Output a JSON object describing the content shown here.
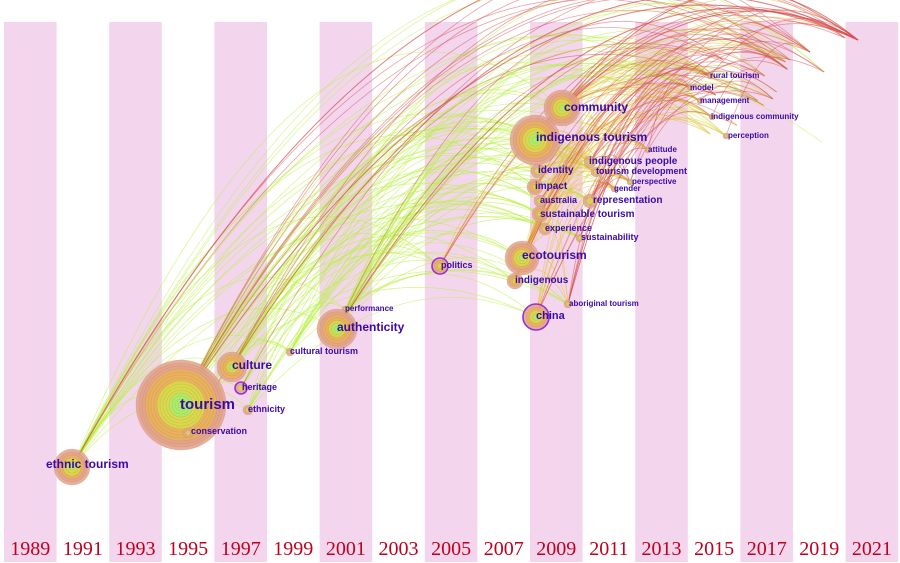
{
  "timeline": {
    "years": [
      "1989",
      "1991",
      "1993",
      "1995",
      "1997",
      "1999",
      "2001",
      "2003",
      "2005",
      "2007",
      "2009",
      "2011",
      "2013",
      "2015",
      "2017",
      "2019",
      "2021"
    ],
    "band_color": "#f3d6ee",
    "year_color": "#c0001e"
  },
  "keyword_colors": {
    "label": "#3a0aa8",
    "early_links": "#b8f040",
    "mid_links": "#e6c23c",
    "late_links": "#d64a4a"
  },
  "keywords": [
    {
      "id": "ethnic_tourism",
      "label": "ethnic tourism",
      "year": 1991,
      "weight": 5,
      "size": "xl"
    },
    {
      "id": "tourism",
      "label": "tourism",
      "year": 1995,
      "weight": 10,
      "size": "xxl"
    },
    {
      "id": "conservation",
      "label": "conservation",
      "year": 1995,
      "weight": 1,
      "size": "s"
    },
    {
      "id": "culture",
      "label": "culture",
      "year": 1997,
      "weight": 4,
      "size": "l"
    },
    {
      "id": "heritage",
      "label": "heritage",
      "year": 1997,
      "weight": 2,
      "size": "s"
    },
    {
      "id": "ethnicity",
      "label": "ethnicity",
      "year": 1997,
      "weight": 1,
      "size": "s"
    },
    {
      "id": "cultural_tourism",
      "label": "cultural tourism",
      "year": 1998,
      "weight": 1,
      "size": "s"
    },
    {
      "id": "performance",
      "label": "performance",
      "year": 2001,
      "weight": 1,
      "size": "s"
    },
    {
      "id": "authenticity",
      "label": "authenticity",
      "year": 2001,
      "weight": 5,
      "size": "l"
    },
    {
      "id": "politics",
      "label": "politics",
      "year": 2005,
      "weight": 2,
      "size": "s"
    },
    {
      "id": "community",
      "label": "community",
      "year": 2009,
      "weight": 5,
      "size": "l"
    },
    {
      "id": "indigenous_tourism",
      "label": "indigenous tourism",
      "year": 2009,
      "weight": 7,
      "size": "l"
    },
    {
      "id": "identity",
      "label": "identity",
      "year": 2009,
      "weight": 2,
      "size": "m"
    },
    {
      "id": "impact",
      "label": "impact",
      "year": 2009,
      "weight": 2,
      "size": "m"
    },
    {
      "id": "australia",
      "label": "australia",
      "year": 2009,
      "weight": 2,
      "size": "s"
    },
    {
      "id": "sustainable_tourism",
      "label": "sustainable tourism",
      "year": 2009,
      "weight": 2,
      "size": "m"
    },
    {
      "id": "experience",
      "label": "experience",
      "year": 2009,
      "weight": 1,
      "size": "s"
    },
    {
      "id": "ecotourism",
      "label": "ecotourism",
      "year": 2009,
      "weight": 5,
      "size": "l"
    },
    {
      "id": "indigenous",
      "label": "indigenous",
      "year": 2009,
      "weight": 2,
      "size": "m"
    },
    {
      "id": "china",
      "label": "china",
      "year": 2009,
      "weight": 4,
      "size": "m"
    },
    {
      "id": "indigenous_people",
      "label": "indigenous people",
      "year": 2011,
      "weight": 2,
      "size": "m"
    },
    {
      "id": "tourism_development",
      "label": "tourism development",
      "year": 2011,
      "weight": 2,
      "size": "m"
    },
    {
      "id": "representation",
      "label": "representation",
      "year": 2011,
      "weight": 2,
      "size": "m"
    },
    {
      "id": "sustainability",
      "label": "sustainability",
      "year": 2011,
      "weight": 1,
      "size": "s"
    },
    {
      "id": "aboriginal_tourism",
      "label": "aboriginal tourism",
      "year": 2011,
      "weight": 1,
      "size": "s"
    },
    {
      "id": "perspective",
      "label": "perspective",
      "year": 2012,
      "weight": 1,
      "size": "s"
    },
    {
      "id": "gender",
      "label": "gender",
      "year": 2012,
      "weight": 1,
      "size": "s"
    },
    {
      "id": "attitude",
      "label": "attitude",
      "year": 2013,
      "weight": 1,
      "size": "s"
    },
    {
      "id": "perception",
      "label": "perception",
      "year": 2015,
      "weight": 1,
      "size": "s"
    },
    {
      "id": "indigenous_community",
      "label": "indigenous community",
      "year": 2015,
      "weight": 1,
      "size": "s"
    },
    {
      "id": "management",
      "label": "management",
      "year": 2015,
      "weight": 1,
      "size": "s"
    },
    {
      "id": "model",
      "label": "model",
      "year": 2015,
      "weight": 1,
      "size": "s"
    },
    {
      "id": "rural_tourism",
      "label": "rural tourism",
      "year": 2016,
      "weight": 1,
      "size": "s"
    }
  ]
}
